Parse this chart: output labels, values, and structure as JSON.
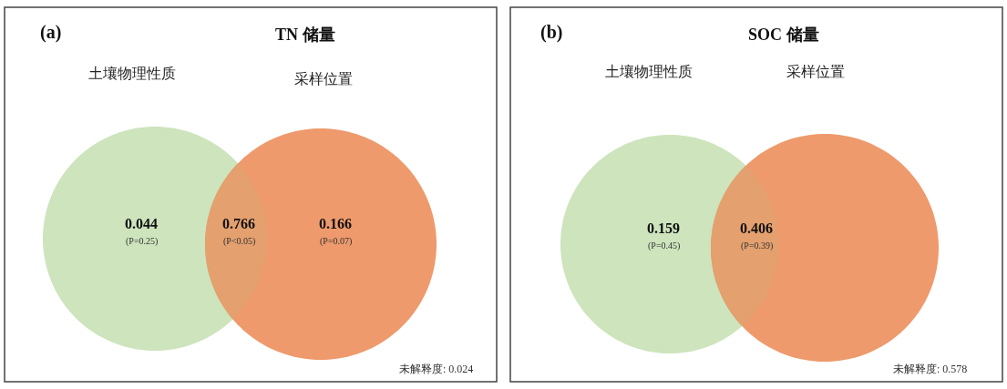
{
  "chart_data": [
    {
      "type": "other",
      "title": "TN 储量",
      "categories": [
        "土壤物理性质",
        null,
        "采样位置"
      ],
      "colors": [
        "#cde4bd",
        "#e4a06e",
        "#ee9a6c"
      ],
      "values": [
        0.044,
        0.766,
        0.166
      ],
      "data_labels": true,
      "annotations": [
        "(a)",
        "(P=0.25)",
        "(P<0.05)",
        "(P=0.07)",
        "未解释度: 0.024"
      ]
    },
    {
      "type": "other",
      "title": "SOC 储量",
      "categories": [
        "土壤物理性质",
        null,
        "采样位置"
      ],
      "colors": [
        "#cde4bd",
        "#e4a06e",
        "#ee9a6c"
      ],
      "values": [
        0.159,
        0.406,
        null
      ],
      "data_labels": true,
      "annotations": [
        "(b)",
        "(P=0.45)",
        "(P=0.39)",
        "未解释度: 0.578"
      ]
    }
  ]
}
